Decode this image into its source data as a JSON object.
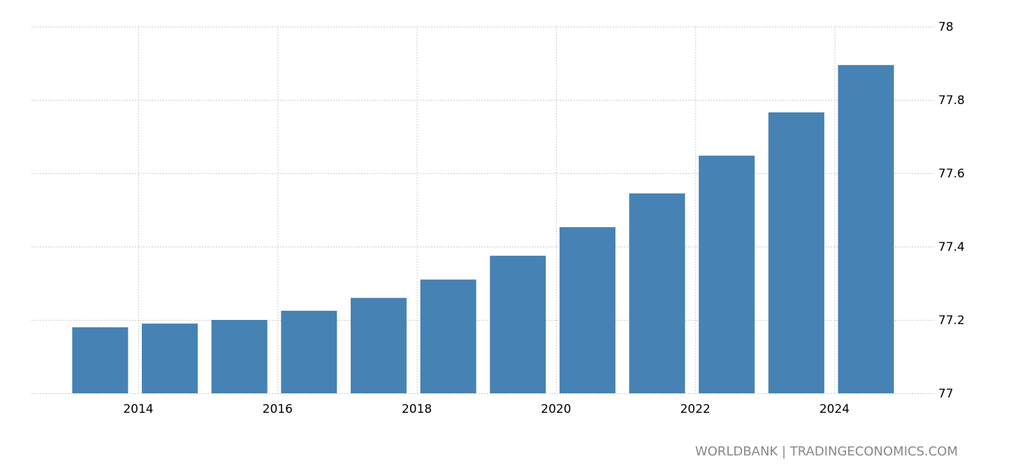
{
  "chart_data": {
    "type": "bar",
    "title": "",
    "xlabel": "",
    "ylabel": "",
    "categories": [
      "2013",
      "2014",
      "2015",
      "2016",
      "2017",
      "2018",
      "2019",
      "2020",
      "2021",
      "2022",
      "2023",
      "2024"
    ],
    "values": [
      77.18,
      77.19,
      77.2,
      77.225,
      77.26,
      77.31,
      77.375,
      77.453,
      77.545,
      77.648,
      77.766,
      77.895
    ],
    "ylim": [
      77,
      78
    ],
    "yticks": [
      "77",
      "77.2",
      "77.4",
      "77.6",
      "77.8",
      "78"
    ],
    "xticks": [
      "2014",
      "2016",
      "2018",
      "2020",
      "2022",
      "2024"
    ],
    "grid": true,
    "yaxis_position": "right",
    "bar_color": "#4682b4",
    "source": "WORLDBANK | TRADINGECONOMICS.COM"
  }
}
